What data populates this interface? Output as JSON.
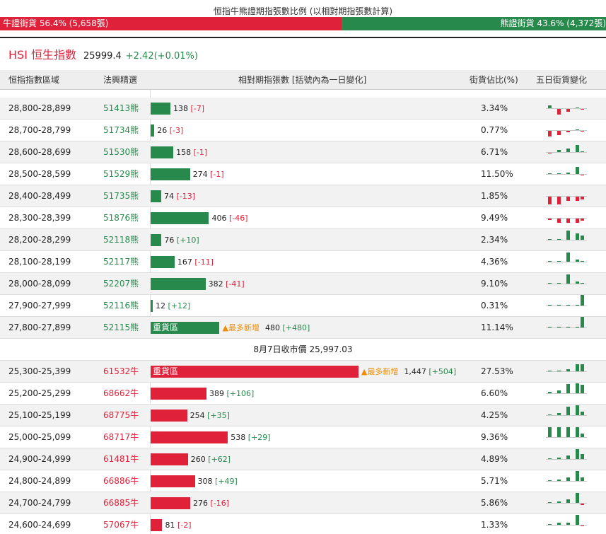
{
  "ratio": {
    "title": "恒指牛熊證期指張數比例 (以相對期指張數計算)",
    "bull_label": "牛證街貨 56.4% (5,658張)",
    "bear_label": "熊證街貨 43.6% (4,372張)",
    "bull_pct": 56.4,
    "bear_pct": 43.6
  },
  "index": {
    "name": "HSI 恒生指數",
    "value": "25999.4",
    "change": "+2.42(+0.01%)"
  },
  "headers": {
    "range": "恒指指數區域",
    "pick": "法興精選",
    "relative": "相對期指張數 [括號內為一日變化]",
    "share": "街貨佔比(%)",
    "five_day": "五日街貨變化"
  },
  "colors": {
    "bull": "#e0213a",
    "bear": "#27894c",
    "hot": "#f08c00"
  },
  "close_text": "8月7日收市價 25,997.03",
  "bear_rows": [
    {
      "range": "28,800-28,899",
      "code": "51413熊",
      "count": "138",
      "change": "[-7]",
      "share": "3.34%",
      "tag": "",
      "hot": "",
      "contracts": 138,
      "trend": [
        4,
        -8,
        -4,
        1,
        -1
      ]
    },
    {
      "range": "28,700-28,799",
      "code": "51734熊",
      "count": "26",
      "change": "[-3]",
      "share": "0.77%",
      "tag": "",
      "hot": "",
      "contracts": 26,
      "trend": [
        -8,
        -6,
        -2,
        1,
        -1
      ]
    },
    {
      "range": "28,600-28,699",
      "code": "51530熊",
      "count": "158",
      "change": "[-1]",
      "share": "6.71%",
      "tag": "",
      "hot": "",
      "contracts": 158,
      "trend": [
        -1,
        3,
        5,
        10,
        0
      ]
    },
    {
      "range": "28,500-28,599",
      "code": "51529熊",
      "count": "274",
      "change": "[-1]",
      "share": "11.50%",
      "tag": "",
      "hot": "",
      "contracts": 274,
      "trend": [
        1,
        0,
        2,
        10,
        -1
      ]
    },
    {
      "range": "28,400-28,499",
      "code": "51735熊",
      "count": "74",
      "change": "[-13]",
      "share": "1.85%",
      "tag": "",
      "hot": "",
      "contracts": 74,
      "trend": [
        -10,
        -10,
        -6,
        -6,
        -4
      ]
    },
    {
      "range": "28,300-28,399",
      "code": "51876熊",
      "count": "406",
      "change": "[-46]",
      "share": "9.49%",
      "tag": "",
      "hot": "",
      "contracts": 406,
      "trend": [
        -2,
        -6,
        -6,
        -6,
        -3
      ]
    },
    {
      "range": "28,200-28,299",
      "code": "52118熊",
      "count": "76",
      "change": "[+10]",
      "share": "2.34%",
      "tag": "",
      "hot": "",
      "contracts": 76,
      "trend": [
        0,
        0,
        12,
        9,
        6
      ]
    },
    {
      "range": "28,100-28,199",
      "code": "52117熊",
      "count": "167",
      "change": "[-11]",
      "share": "4.36%",
      "tag": "",
      "hot": "",
      "contracts": 167,
      "trend": [
        0,
        0,
        12,
        3,
        1
      ]
    },
    {
      "range": "28,000-28,099",
      "code": "52207熊",
      "count": "382",
      "change": "[-41]",
      "share": "9.10%",
      "tag": "",
      "hot": "",
      "contracts": 382,
      "trend": [
        0,
        0,
        12,
        3,
        1
      ]
    },
    {
      "range": "27,900-27,999",
      "code": "52116熊",
      "count": "12",
      "change": "[+12]",
      "share": "0.31%",
      "tag": "",
      "hot": "",
      "contracts": 12,
      "trend": [
        0,
        0,
        0,
        0,
        14
      ]
    },
    {
      "range": "27,800-27,899",
      "code": "52115熊",
      "count": "480",
      "change": "[+480]",
      "share": "11.14%",
      "tag": "重貨區",
      "hot": "▲最多新增",
      "contracts": 480,
      "trend": [
        0,
        0,
        0,
        0,
        14
      ]
    }
  ],
  "bull_rows": [
    {
      "range": "25,300-25,399",
      "code": "61532牛",
      "count": "1,447",
      "change": "[+504]",
      "share": "27.53%",
      "tag": "重貨區",
      "hot": "▲最多新增",
      "contracts": 1447,
      "trend": [
        0,
        1,
        3,
        10,
        10
      ]
    },
    {
      "range": "25,200-25,299",
      "code": "68662牛",
      "count": "389",
      "change": "[+106]",
      "share": "6.60%",
      "tag": "",
      "hot": "",
      "contracts": 389,
      "trend": [
        2,
        4,
        12,
        13,
        11
      ]
    },
    {
      "range": "25,100-25,199",
      "code": "68775牛",
      "count": "254",
      "change": "[+35]",
      "share": "4.25%",
      "tag": "",
      "hot": "",
      "contracts": 254,
      "trend": [
        1,
        3,
        11,
        13,
        5
      ]
    },
    {
      "range": "25,000-25,099",
      "code": "68717牛",
      "count": "538",
      "change": "[+29]",
      "share": "9.36%",
      "tag": "",
      "hot": "",
      "contracts": 538,
      "trend": [
        13,
        13,
        13,
        13,
        5
      ]
    },
    {
      "range": "24,900-24,999",
      "code": "61481牛",
      "count": "260",
      "change": "[+62]",
      "share": "4.89%",
      "tag": "",
      "hot": "",
      "contracts": 260,
      "trend": [
        1,
        2,
        5,
        13,
        7
      ]
    },
    {
      "range": "24,800-24,899",
      "code": "66886牛",
      "count": "308",
      "change": "[+49]",
      "share": "5.71%",
      "tag": "",
      "hot": "",
      "contracts": 308,
      "trend": [
        1,
        2,
        5,
        13,
        5
      ]
    },
    {
      "range": "24,700-24,799",
      "code": "66885牛",
      "count": "276",
      "change": "[-16]",
      "share": "5.86%",
      "tag": "",
      "hot": "",
      "contracts": 276,
      "trend": [
        1,
        2,
        5,
        13,
        -2
      ]
    },
    {
      "range": "24,600-24,699",
      "code": "57067牛",
      "count": "81",
      "change": "[-2]",
      "share": "1.33%",
      "tag": "",
      "hot": "",
      "contracts": 81,
      "trend": [
        1,
        3,
        3,
        13,
        -1
      ]
    }
  ]
}
